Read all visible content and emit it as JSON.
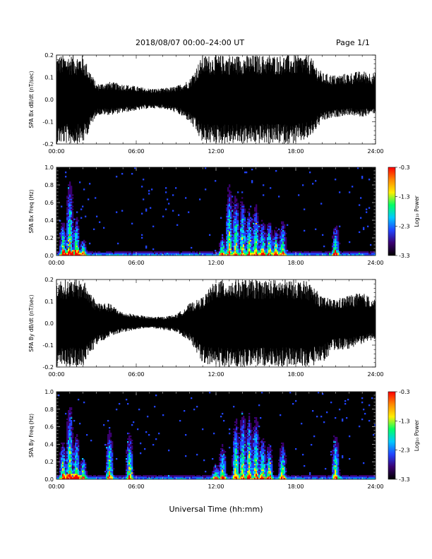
{
  "header": {
    "title": "2018/08/07   00:00–24:00 UT",
    "page": "Page 1/1"
  },
  "xlabel": "Universal Time (hh:mm)",
  "colorbar": {
    "ticks": [
      "-0.3",
      "-1.3",
      "-2.3",
      "-3.3"
    ],
    "label": "Log₁₀ Power",
    "range": [
      -3.3,
      -0.3
    ],
    "colors": [
      "#000000",
      "#3a0070",
      "#2244ff",
      "#00c8ff",
      "#00ff66",
      "#ffee00",
      "#ff8800",
      "#ff0000"
    ]
  },
  "chart_data": [
    {
      "type": "line",
      "id": "bx-timeseries",
      "ylabel": "SPA Bx dB/dt (nT/sec)",
      "x_ticks": [
        "00:00",
        "06:00",
        "12:00",
        "18:00",
        "24:00"
      ],
      "xlim": [
        0,
        24
      ],
      "ylim": [
        -0.2,
        0.2
      ],
      "y_ticks": [
        "0.2",
        "0.1",
        "0.0",
        "-0.1",
        "-0.2"
      ],
      "series": [
        {
          "x": [
            0,
            1,
            2,
            3,
            4,
            5,
            6,
            7,
            8,
            9,
            10,
            11,
            12,
            13,
            14,
            15,
            16,
            17,
            18,
            19,
            20,
            21,
            22,
            23,
            24
          ],
          "upper": [
            0.2,
            0.2,
            0.2,
            0.07,
            0.08,
            0.07,
            0.06,
            0.05,
            0.05,
            0.06,
            0.09,
            0.2,
            0.2,
            0.2,
            0.2,
            0.2,
            0.2,
            0.2,
            0.2,
            0.2,
            0.12,
            0.11,
            0.12,
            0.13,
            0.12
          ],
          "lower": [
            -0.2,
            -0.2,
            -0.2,
            -0.07,
            -0.07,
            -0.06,
            -0.05,
            -0.04,
            -0.04,
            -0.06,
            -0.1,
            -0.2,
            -0.2,
            -0.2,
            -0.2,
            -0.2,
            -0.2,
            -0.2,
            -0.2,
            -0.18,
            -0.1,
            -0.08,
            -0.07,
            -0.08,
            -0.06
          ]
        }
      ]
    },
    {
      "type": "heatmap",
      "id": "bx-spectrogram",
      "ylabel": "SPA Bx Freq (Hz)",
      "x_ticks": [
        "00:00",
        "06:00",
        "12:00",
        "18:00",
        "24:00"
      ],
      "xlim": [
        0,
        24
      ],
      "ylim": [
        0,
        1.0
      ],
      "y_ticks": [
        "1.0",
        "0.8",
        "0.6",
        "0.4",
        "0.2",
        "0.0"
      ],
      "activity_hours": [
        0.5,
        1.0,
        1.5,
        2.0,
        12.5,
        13.0,
        13.5,
        14.0,
        14.5,
        15.0,
        15.5,
        16.0,
        16.5,
        17.0,
        21.0
      ],
      "activity_max_freq": [
        0.45,
        1.0,
        0.5,
        0.2,
        0.25,
        0.9,
        0.8,
        0.75,
        0.6,
        0.65,
        0.45,
        0.45,
        0.35,
        0.45,
        0.4
      ]
    },
    {
      "type": "line",
      "id": "by-timeseries",
      "ylabel": "SPA By dB/dt (nT/sec)",
      "x_ticks": [
        "00:00",
        "06:00",
        "12:00",
        "18:00",
        "24:00"
      ],
      "xlim": [
        0,
        24
      ],
      "ylim": [
        -0.2,
        0.2
      ],
      "y_ticks": [
        "0.2",
        "0.1",
        "0.0",
        "-0.1",
        "-0.2"
      ],
      "series": [
        {
          "x": [
            0,
            1,
            2,
            3,
            4,
            5,
            6,
            7,
            8,
            9,
            10,
            11,
            12,
            13,
            14,
            15,
            16,
            17,
            18,
            19,
            20,
            21,
            22,
            23,
            24
          ],
          "upper": [
            0.2,
            0.2,
            0.2,
            0.1,
            0.09,
            0.05,
            0.04,
            0.03,
            0.03,
            0.04,
            0.09,
            0.12,
            0.2,
            0.2,
            0.2,
            0.2,
            0.2,
            0.2,
            0.2,
            0.19,
            0.12,
            0.11,
            0.13,
            0.14,
            0.11
          ],
          "lower": [
            -0.2,
            -0.2,
            -0.2,
            -0.1,
            -0.06,
            -0.04,
            -0.03,
            -0.02,
            -0.03,
            -0.04,
            -0.08,
            -0.18,
            -0.2,
            -0.2,
            -0.2,
            -0.2,
            -0.2,
            -0.2,
            -0.2,
            -0.2,
            -0.18,
            -0.12,
            -0.12,
            -0.1,
            -0.07
          ]
        }
      ]
    },
    {
      "type": "heatmap",
      "id": "by-spectrogram",
      "ylabel": "SPA By Freq (Hz)",
      "x_ticks": [
        "00:00",
        "06:00",
        "12:00",
        "18:00",
        "24:00"
      ],
      "xlim": [
        0,
        24
      ],
      "ylim": [
        0,
        1.0
      ],
      "y_ticks": [
        "1.0",
        "0.8",
        "0.6",
        "0.4",
        "0.2",
        "0.0"
      ],
      "activity_hours": [
        0.5,
        1.0,
        1.5,
        2.0,
        4.0,
        5.5,
        12.0,
        12.5,
        13.5,
        14.0,
        14.5,
        15.0,
        15.5,
        16.0,
        17.0,
        21.0
      ],
      "activity_max_freq": [
        0.5,
        1.0,
        0.6,
        0.3,
        0.65,
        0.6,
        0.2,
        0.45,
        0.8,
        0.9,
        0.85,
        0.85,
        0.55,
        0.45,
        0.5,
        0.6
      ]
    }
  ]
}
